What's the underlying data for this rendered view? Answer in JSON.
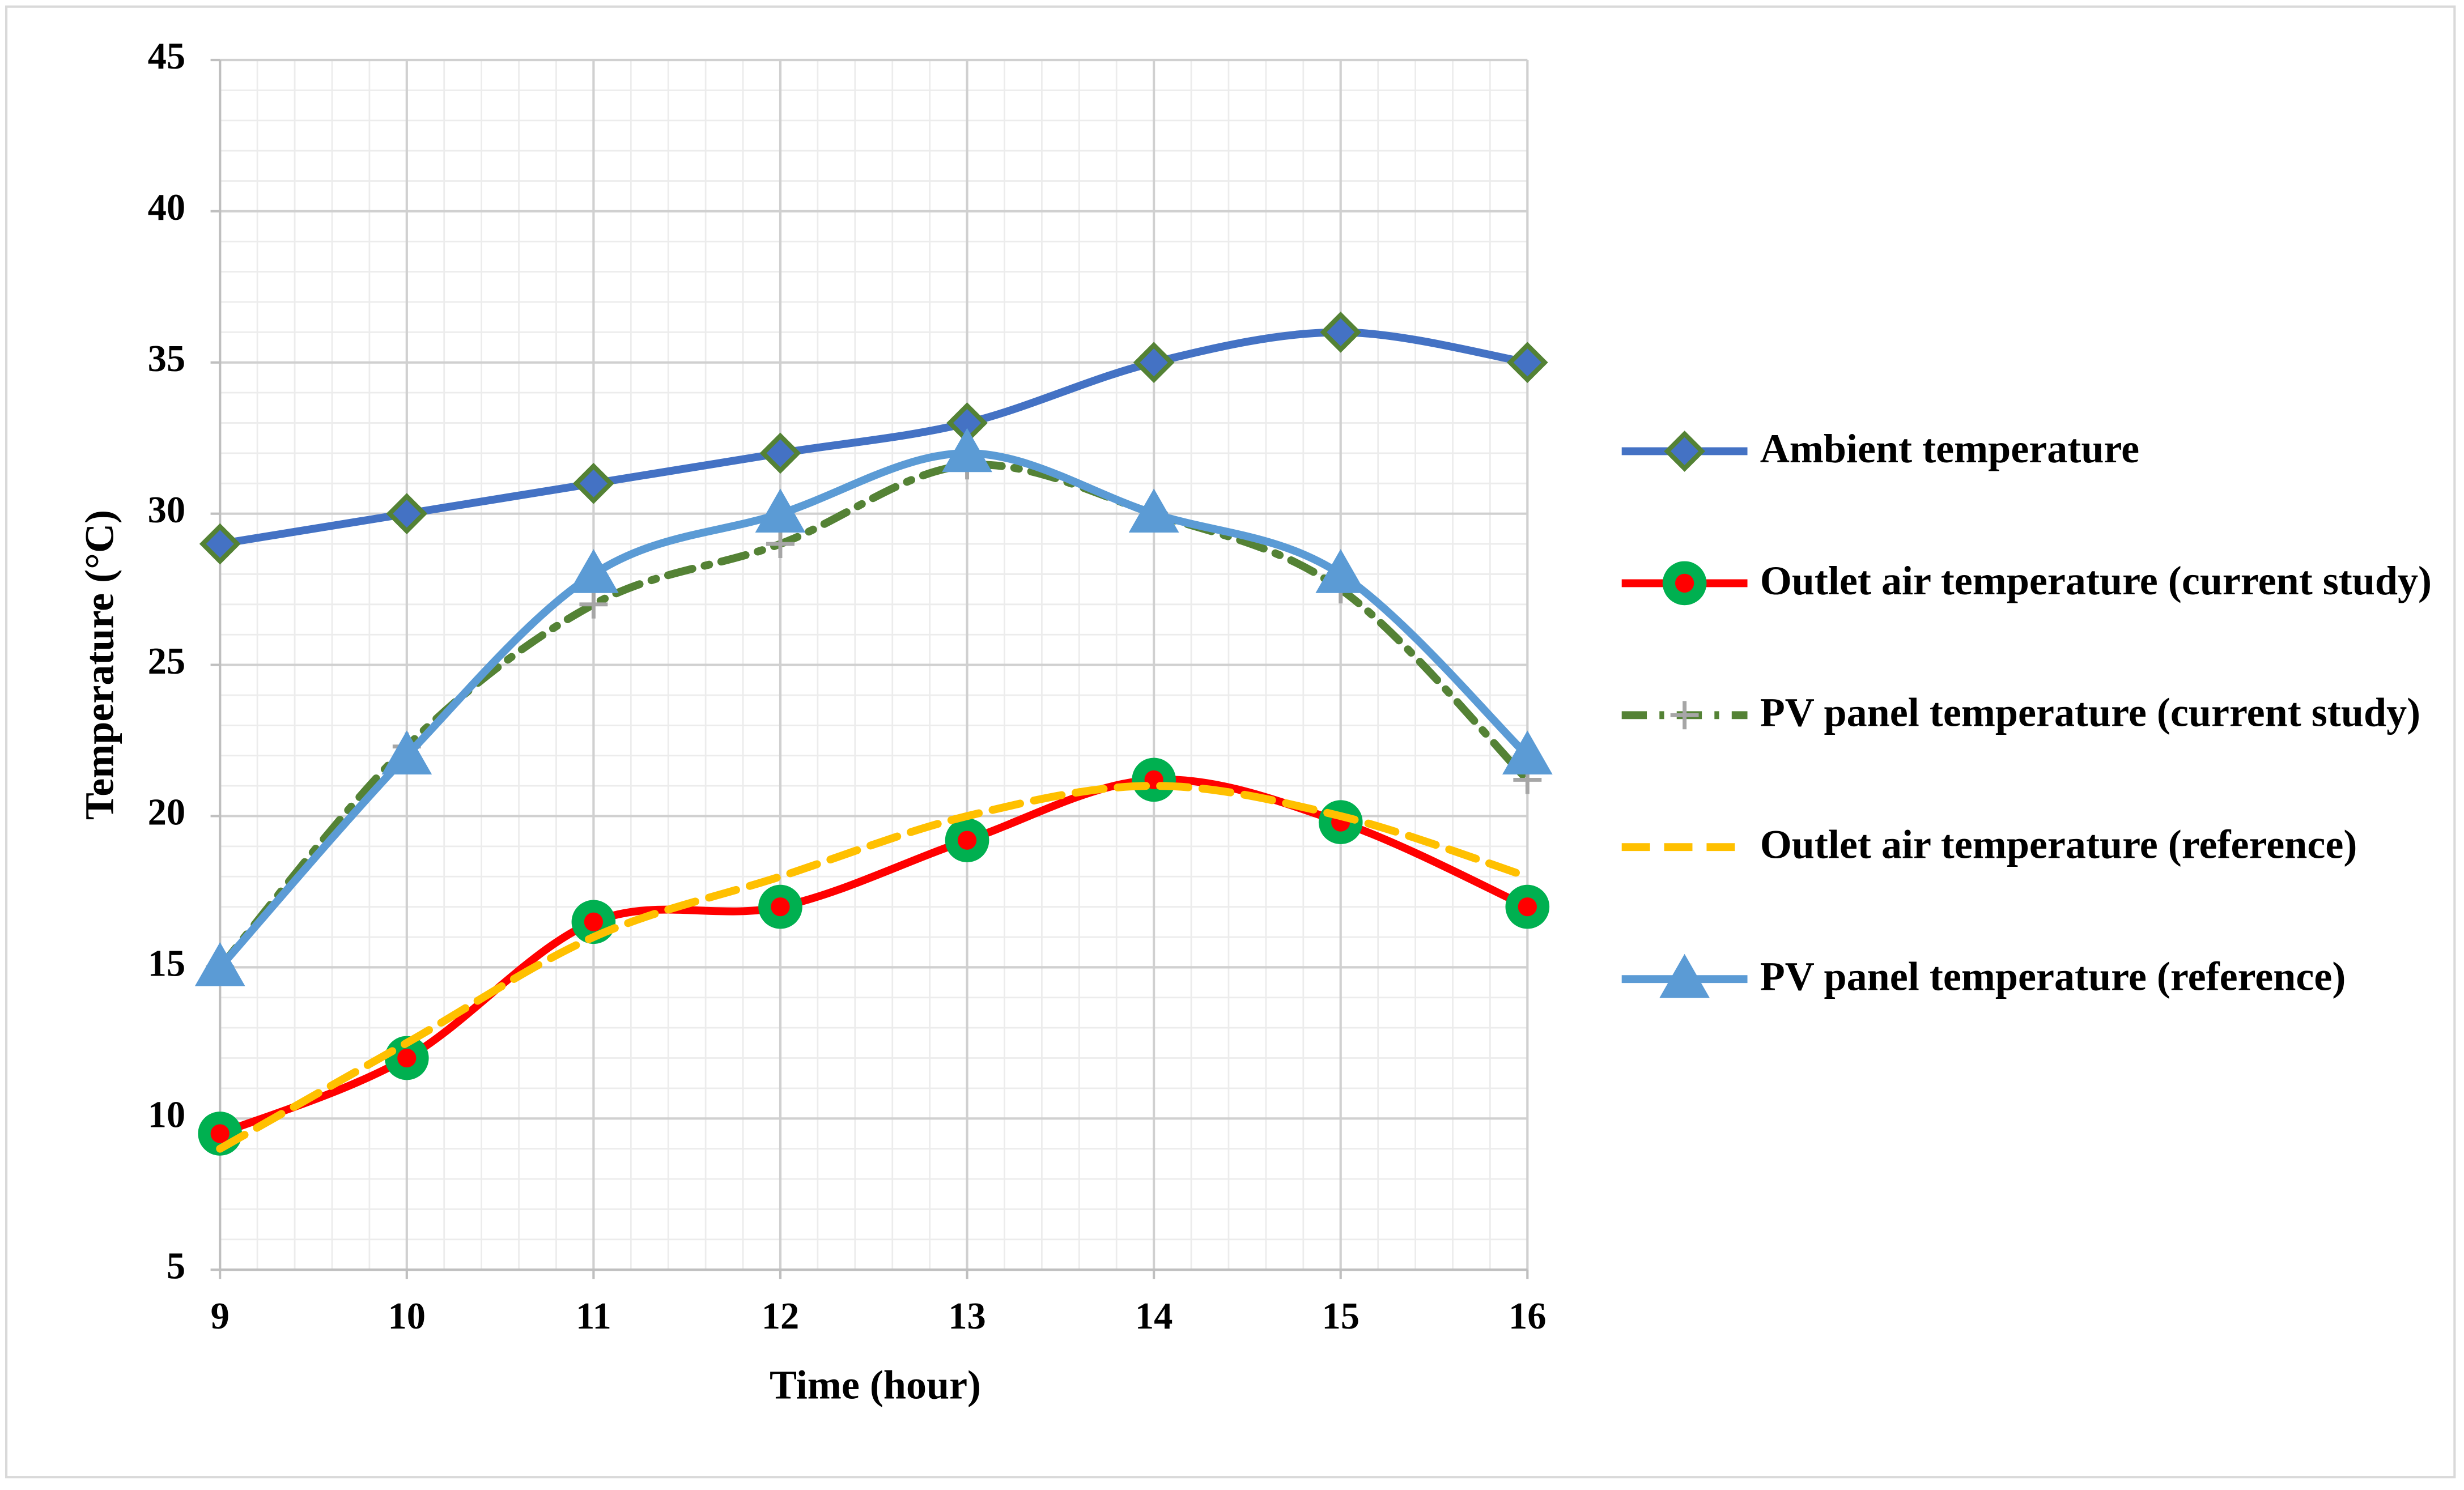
{
  "chart_data": {
    "type": "line",
    "x": [
      9,
      10,
      11,
      12,
      13,
      14,
      15,
      16
    ],
    "xlim": [
      9,
      16
    ],
    "xticks": [
      9,
      10,
      11,
      12,
      13,
      14,
      15,
      16
    ],
    "ylim": [
      5,
      45
    ],
    "yticks": [
      5,
      10,
      15,
      20,
      25,
      30,
      35,
      40,
      45
    ],
    "xlabel": "Time (hour)",
    "ylabel": "Temperature (°C)",
    "grid": true,
    "minor_grid": true,
    "legend": "right",
    "series": [
      {
        "name": "Ambient temperature",
        "color": "#4472c4",
        "marker": "diamond",
        "dash": "solid",
        "values": [
          29,
          30,
          31,
          32,
          33,
          35,
          36,
          35
        ]
      },
      {
        "name": "Outlet air temperature (current study)",
        "color": "#ff0000",
        "marker": "circle",
        "dash": "solid",
        "values": [
          9.5,
          12,
          16.5,
          17,
          19.2,
          21.2,
          19.8,
          17
        ]
      },
      {
        "name": "PV panel temperature (current study)",
        "color": "#548235",
        "marker": "plus",
        "dash": "dashdot",
        "values": [
          15,
          22.3,
          27,
          29,
          31.6,
          30,
          27.5,
          21.2
        ]
      },
      {
        "name": "Outlet air temperature (reference)",
        "color": "#ffc000",
        "marker": "none",
        "dash": "dash",
        "values": [
          9,
          12.5,
          16,
          18,
          20,
          21,
          20,
          18
        ]
      },
      {
        "name": "PV panel temperature (reference)",
        "color": "#5b9bd5",
        "marker": "triangle",
        "dash": "solid",
        "values": [
          15,
          22,
          28,
          30,
          32,
          30,
          28,
          22
        ]
      }
    ]
  }
}
